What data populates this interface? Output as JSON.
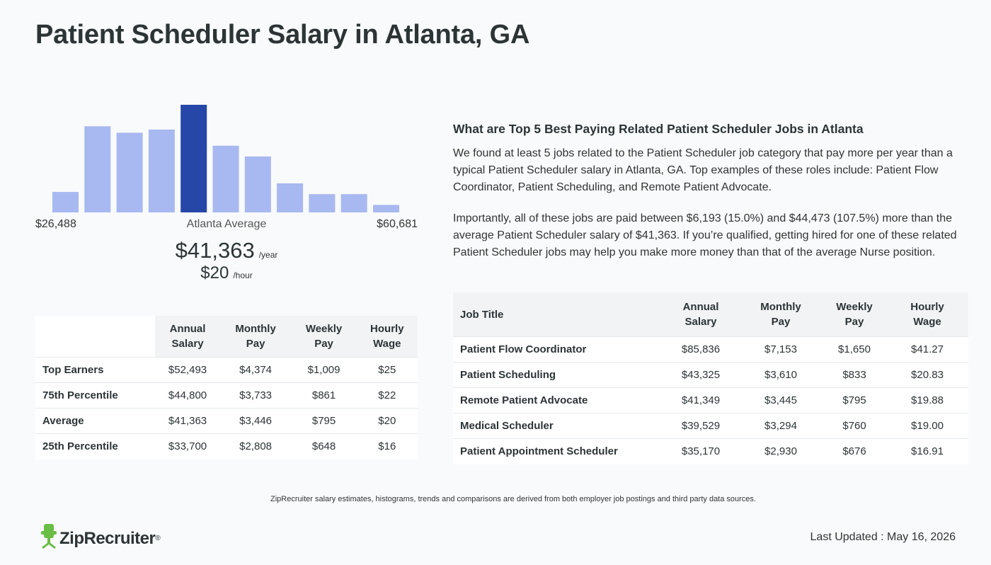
{
  "page": {
    "title": "Patient Scheduler Salary in Atlanta, GA"
  },
  "histogram": {
    "values": [
      0.19,
      0.8,
      0.74,
      0.77,
      1.0,
      0.62,
      0.52,
      0.27,
      0.17,
      0.17,
      0.07
    ],
    "highlight_index": 4,
    "bar_color": "#a8b8f0",
    "highlight_color": "#2747a8",
    "min_label": "$26,488",
    "max_label": "$60,681",
    "average_label": "Atlanta Average"
  },
  "summary": {
    "annual": "$41,363",
    "annual_unit": "/year",
    "hourly": "$20",
    "hourly_unit": "/hour"
  },
  "percentile_table": {
    "headers": [
      "Annual Salary",
      "Monthly Pay",
      "Weekly Pay",
      "Hourly Wage"
    ],
    "header_lines": [
      [
        "Annual",
        "Salary"
      ],
      [
        "Monthly",
        "Pay"
      ],
      [
        "Weekly",
        "Pay"
      ],
      [
        "Hourly",
        "Wage"
      ]
    ],
    "rows": [
      {
        "label": "Top Earners",
        "annual": "$52,493",
        "monthly": "$4,374",
        "weekly": "$1,009",
        "hourly": "$25"
      },
      {
        "label": "75th Percentile",
        "annual": "$44,800",
        "monthly": "$3,733",
        "weekly": "$861",
        "hourly": "$22"
      },
      {
        "label": "Average",
        "annual": "$41,363",
        "monthly": "$3,446",
        "weekly": "$795",
        "hourly": "$20"
      },
      {
        "label": "25th Percentile",
        "annual": "$33,700",
        "monthly": "$2,808",
        "weekly": "$648",
        "hourly": "$16"
      }
    ]
  },
  "related": {
    "heading": "What are Top 5 Best Paying Related Patient Scheduler Jobs in Atlanta",
    "paragraph1": "We found at least 5 jobs related to the Patient Scheduler job category that pay more per year than a typical Patient Scheduler salary in Atlanta, GA. Top examples of these roles include: Patient Flow Coordinator, Patient Scheduling, and Remote Patient Advocate.",
    "paragraph2": "Importantly, all of these jobs are paid between $6,193 (15.0%) and $44,473 (107.5%) more than the average Patient Scheduler salary of $41,363. If you’re qualified, getting hired for one of these related Patient Scheduler jobs may help you make more money than that of the average Nurse position."
  },
  "jobs_table": {
    "title_header": "Job Title",
    "header_lines": [
      [
        "Annual",
        "Salary"
      ],
      [
        "Monthly",
        "Pay"
      ],
      [
        "Weekly",
        "Pay"
      ],
      [
        "Hourly",
        "Wage"
      ]
    ],
    "rows": [
      {
        "title": "Patient Flow Coordinator",
        "annual": "$85,836",
        "monthly": "$7,153",
        "weekly": "$1,650",
        "hourly": "$41.27"
      },
      {
        "title": "Patient Scheduling",
        "annual": "$43,325",
        "monthly": "$3,610",
        "weekly": "$833",
        "hourly": "$20.83"
      },
      {
        "title": "Remote Patient Advocate",
        "annual": "$41,349",
        "monthly": "$3,445",
        "weekly": "$795",
        "hourly": "$19.88"
      },
      {
        "title": "Medical Scheduler",
        "annual": "$39,529",
        "monthly": "$3,294",
        "weekly": "$760",
        "hourly": "$19.00"
      },
      {
        "title": "Patient Appointment Scheduler",
        "annual": "$35,170",
        "monthly": "$2,930",
        "weekly": "$676",
        "hourly": "$16.91"
      }
    ]
  },
  "footer": {
    "note": "ZipRecruiter salary estimates, histograms, trends and comparisons are derived from both employer job postings and third party data sources.",
    "brand": "ZipRecruiter",
    "brand_mark": "®",
    "logo_color": "#6abd45",
    "updated": "Last Updated : May 16, 2026"
  }
}
